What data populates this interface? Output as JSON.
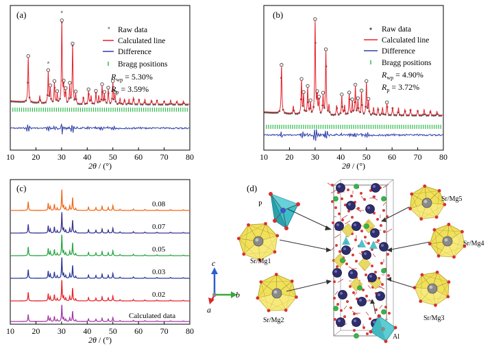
{
  "colors": {
    "raw": "#555555",
    "calc": "#e8202a",
    "diff": "#2c3ea8",
    "bragg": "#2db84a",
    "c_series": [
      "#f06a1c",
      "#3a3594",
      "#2aa844",
      "#2b3a9a",
      "#e8262c",
      "#a43aa8"
    ]
  },
  "panel_a": {
    "letter": "(a)",
    "legend": {
      "raw": "Raw data",
      "calc": "Calculated line",
      "diff": "Difference",
      "bragg": "Bragg positions"
    },
    "rwp": {
      "R": "R",
      "sub": "wp",
      "rest": " = 5.30%"
    },
    "rp": {
      "R": "R",
      "sub": "p",
      "rest": " = 3.59%"
    },
    "marker": "*"
  },
  "panel_b": {
    "letter": "(b)",
    "legend": {
      "raw": "Raw data",
      "calc": "Calculated line",
      "diff": "Difference",
      "bragg": "Bragg positions"
    },
    "rwp": {
      "R": "R",
      "sub": "wp",
      "rest": " = 4.90%"
    },
    "rp": {
      "R": "R",
      "sub": "p",
      "rest": " = 3.72%"
    }
  },
  "panel_c": {
    "letter": "(c)",
    "labels": [
      "0.08",
      "0.07",
      "0.05",
      "0.03",
      "0.02",
      "Calculated data"
    ]
  },
  "panel_d": {
    "letter": "(d)",
    "labels": [
      "P",
      "Sr/Mg1",
      "Sr/Mg2",
      "Sr/Mg3",
      "Sr/Mg4",
      "Sr/Mg5",
      "Al"
    ],
    "axes": {
      "a": "a",
      "b": "b",
      "c": "c"
    }
  },
  "x_axis": {
    "title_theta": "2θ",
    "title_unit": " / (°)",
    "ticks": [
      "10",
      "20",
      "30",
      "40",
      "50",
      "60",
      "70",
      "80"
    ]
  },
  "chart_data": [
    {
      "type": "line",
      "panel": "(a)",
      "x_range": [
        10,
        80
      ],
      "series": [
        {
          "name": "Raw data",
          "style": "markers"
        },
        {
          "name": "Calculated line"
        },
        {
          "name": "Difference"
        },
        {
          "name": "Bragg positions",
          "style": "ticks"
        }
      ],
      "peaks": [
        {
          "x": 17.0,
          "h": 0.55
        },
        {
          "x": 21.5,
          "h": 0.08
        },
        {
          "x": 24.8,
          "h": 0.38
        },
        {
          "x": 25.6,
          "h": 0.18
        },
        {
          "x": 27.2,
          "h": 0.25
        },
        {
          "x": 28.3,
          "h": 0.12
        },
        {
          "x": 30.1,
          "h": 1.0
        },
        {
          "x": 30.8,
          "h": 0.2
        },
        {
          "x": 31.6,
          "h": 0.15
        },
        {
          "x": 33.2,
          "h": 0.22
        },
        {
          "x": 34.3,
          "h": 0.72
        },
        {
          "x": 35.5,
          "h": 0.12
        },
        {
          "x": 38.5,
          "h": 0.08
        },
        {
          "x": 40.5,
          "h": 0.16
        },
        {
          "x": 41.5,
          "h": 0.1
        },
        {
          "x": 43.4,
          "h": 0.14
        },
        {
          "x": 44.5,
          "h": 0.1
        },
        {
          "x": 45.8,
          "h": 0.22
        },
        {
          "x": 46.7,
          "h": 0.12
        },
        {
          "x": 48.2,
          "h": 0.18
        },
        {
          "x": 50.0,
          "h": 0.26
        },
        {
          "x": 50.8,
          "h": 0.12
        },
        {
          "x": 52.8,
          "h": 0.07
        },
        {
          "x": 54.5,
          "h": 0.06
        },
        {
          "x": 56.3,
          "h": 0.06
        },
        {
          "x": 58.0,
          "h": 0.08
        },
        {
          "x": 60.2,
          "h": 0.06
        },
        {
          "x": 62.5,
          "h": 0.06
        },
        {
          "x": 65.0,
          "h": 0.05
        },
        {
          "x": 67.2,
          "h": 0.05
        },
        {
          "x": 70.0,
          "h": 0.04
        },
        {
          "x": 72.5,
          "h": 0.05
        },
        {
          "x": 75.0,
          "h": 0.04
        },
        {
          "x": 77.5,
          "h": 0.04
        }
      ],
      "starred_peaks": [
        24.8,
        30.1
      ]
    },
    {
      "type": "line",
      "panel": "(b)",
      "x_range": [
        10,
        80
      ],
      "series": [
        {
          "name": "Raw data",
          "style": "markers"
        },
        {
          "name": "Calculated line"
        },
        {
          "name": "Difference"
        },
        {
          "name": "Bragg positions",
          "style": "ticks"
        }
      ],
      "peaks": [
        {
          "x": 16.9,
          "h": 0.5
        },
        {
          "x": 21.5,
          "h": 0.08
        },
        {
          "x": 24.7,
          "h": 0.35
        },
        {
          "x": 25.5,
          "h": 0.2
        },
        {
          "x": 27.1,
          "h": 0.28
        },
        {
          "x": 28.2,
          "h": 0.12
        },
        {
          "x": 30.0,
          "h": 1.0
        },
        {
          "x": 30.8,
          "h": 0.18
        },
        {
          "x": 31.5,
          "h": 0.15
        },
        {
          "x": 33.1,
          "h": 0.2
        },
        {
          "x": 34.2,
          "h": 0.68
        },
        {
          "x": 35.4,
          "h": 0.1
        },
        {
          "x": 38.4,
          "h": 0.1
        },
        {
          "x": 40.4,
          "h": 0.2
        },
        {
          "x": 41.5,
          "h": 0.1
        },
        {
          "x": 43.3,
          "h": 0.22
        },
        {
          "x": 44.5,
          "h": 0.14
        },
        {
          "x": 45.7,
          "h": 0.3
        },
        {
          "x": 46.7,
          "h": 0.15
        },
        {
          "x": 48.1,
          "h": 0.24
        },
        {
          "x": 50.0,
          "h": 0.34
        },
        {
          "x": 50.8,
          "h": 0.14
        },
        {
          "x": 52.8,
          "h": 0.08
        },
        {
          "x": 54.5,
          "h": 0.08
        },
        {
          "x": 56.3,
          "h": 0.08
        },
        {
          "x": 58.0,
          "h": 0.12
        },
        {
          "x": 60.2,
          "h": 0.08
        },
        {
          "x": 62.5,
          "h": 0.08
        },
        {
          "x": 65.0,
          "h": 0.06
        },
        {
          "x": 67.2,
          "h": 0.06
        },
        {
          "x": 70.0,
          "h": 0.05
        },
        {
          "x": 72.5,
          "h": 0.06
        },
        {
          "x": 75.0,
          "h": 0.05
        },
        {
          "x": 77.5,
          "h": 0.04
        }
      ]
    },
    {
      "type": "line",
      "panel": "(c)",
      "x_range": [
        10,
        80
      ],
      "series": [
        {
          "name": "0.08"
        },
        {
          "name": "0.07"
        },
        {
          "name": "0.05"
        },
        {
          "name": "0.03"
        },
        {
          "name": "0.02"
        },
        {
          "name": "Calculated data"
        }
      ],
      "peaks": [
        {
          "x": 17.0,
          "h": 0.42
        },
        {
          "x": 24.8,
          "h": 0.35
        },
        {
          "x": 25.6,
          "h": 0.2
        },
        {
          "x": 27.2,
          "h": 0.3
        },
        {
          "x": 28.3,
          "h": 0.12
        },
        {
          "x": 30.1,
          "h": 1.0
        },
        {
          "x": 30.8,
          "h": 0.2
        },
        {
          "x": 31.6,
          "h": 0.14
        },
        {
          "x": 33.2,
          "h": 0.22
        },
        {
          "x": 34.3,
          "h": 0.62
        },
        {
          "x": 35.5,
          "h": 0.1
        },
        {
          "x": 40.5,
          "h": 0.16
        },
        {
          "x": 43.4,
          "h": 0.14
        },
        {
          "x": 45.8,
          "h": 0.2
        },
        {
          "x": 48.2,
          "h": 0.15
        },
        {
          "x": 50.0,
          "h": 0.24
        },
        {
          "x": 52.8,
          "h": 0.06
        },
        {
          "x": 58.0,
          "h": 0.07
        },
        {
          "x": 62.5,
          "h": 0.05
        },
        {
          "x": 67.2,
          "h": 0.04
        },
        {
          "x": 72.5,
          "h": 0.04
        },
        {
          "x": 77.5,
          "h": 0.03
        }
      ]
    }
  ]
}
